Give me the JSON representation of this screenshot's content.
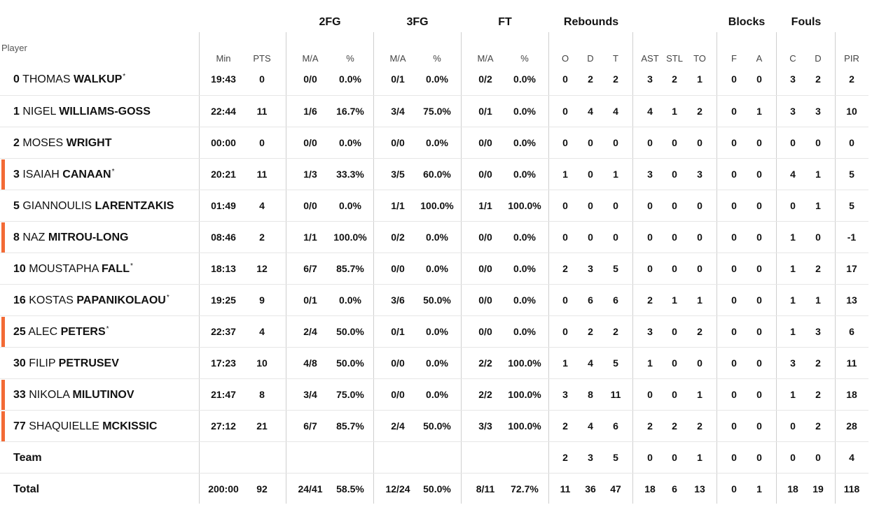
{
  "columns": {
    "group_headers": {
      "fg2": "2FG",
      "fg3": "3FG",
      "ft": "FT",
      "reb": "Rebounds",
      "blk": "Blocks",
      "fouls": "Fouls"
    },
    "player_header": "Player",
    "sub_headers": {
      "min": "Min",
      "pts": "PTS",
      "fg2_ma": "M/A",
      "fg2_pct": "%",
      "fg3_ma": "M/A",
      "fg3_pct": "%",
      "ft_ma": "M/A",
      "ft_pct": "%",
      "reb_o": "O",
      "reb_d": "D",
      "reb_t": "T",
      "ast": "AST",
      "stl": "STL",
      "to": "TO",
      "blk_f": "F",
      "blk_a": "A",
      "fl_c": "C",
      "fl_d": "D",
      "pir": "PIR"
    }
  },
  "players": [
    {
      "num": "0",
      "first": "THOMAS",
      "last": "WALKUP",
      "starter": true,
      "accent": false,
      "min": "19:43",
      "pts": "0",
      "fg2_ma": "0/0",
      "fg2_pct": "0.0%",
      "fg3_ma": "0/1",
      "fg3_pct": "0.0%",
      "ft_ma": "0/2",
      "ft_pct": "0.0%",
      "reb_o": "0",
      "reb_d": "2",
      "reb_t": "2",
      "ast": "3",
      "stl": "2",
      "to": "1",
      "blk_f": "0",
      "blk_a": "0",
      "fl_c": "3",
      "fl_d": "2",
      "pir": "2"
    },
    {
      "num": "1",
      "first": "NIGEL",
      "last": "WILLIAMS-GOSS",
      "starter": false,
      "accent": false,
      "min": "22:44",
      "pts": "11",
      "fg2_ma": "1/6",
      "fg2_pct": "16.7%",
      "fg3_ma": "3/4",
      "fg3_pct": "75.0%",
      "ft_ma": "0/1",
      "ft_pct": "0.0%",
      "reb_o": "0",
      "reb_d": "4",
      "reb_t": "4",
      "ast": "4",
      "stl": "1",
      "to": "2",
      "blk_f": "0",
      "blk_a": "1",
      "fl_c": "3",
      "fl_d": "3",
      "pir": "10"
    },
    {
      "num": "2",
      "first": "MOSES",
      "last": "WRIGHT",
      "starter": false,
      "accent": false,
      "min": "00:00",
      "pts": "0",
      "fg2_ma": "0/0",
      "fg2_pct": "0.0%",
      "fg3_ma": "0/0",
      "fg3_pct": "0.0%",
      "ft_ma": "0/0",
      "ft_pct": "0.0%",
      "reb_o": "0",
      "reb_d": "0",
      "reb_t": "0",
      "ast": "0",
      "stl": "0",
      "to": "0",
      "blk_f": "0",
      "blk_a": "0",
      "fl_c": "0",
      "fl_d": "0",
      "pir": "0"
    },
    {
      "num": "3",
      "first": "ISAIAH",
      "last": "CANAAN",
      "starter": true,
      "accent": true,
      "min": "20:21",
      "pts": "11",
      "fg2_ma": "1/3",
      "fg2_pct": "33.3%",
      "fg3_ma": "3/5",
      "fg3_pct": "60.0%",
      "ft_ma": "0/0",
      "ft_pct": "0.0%",
      "reb_o": "1",
      "reb_d": "0",
      "reb_t": "1",
      "ast": "3",
      "stl": "0",
      "to": "3",
      "blk_f": "0",
      "blk_a": "0",
      "fl_c": "4",
      "fl_d": "1",
      "pir": "5"
    },
    {
      "num": "5",
      "first": "GIANNOULIS",
      "last": "LARENTZAKIS",
      "starter": false,
      "accent": false,
      "min": "01:49",
      "pts": "4",
      "fg2_ma": "0/0",
      "fg2_pct": "0.0%",
      "fg3_ma": "1/1",
      "fg3_pct": "100.0%",
      "ft_ma": "1/1",
      "ft_pct": "100.0%",
      "reb_o": "0",
      "reb_d": "0",
      "reb_t": "0",
      "ast": "0",
      "stl": "0",
      "to": "0",
      "blk_f": "0",
      "blk_a": "0",
      "fl_c": "0",
      "fl_d": "1",
      "pir": "5"
    },
    {
      "num": "8",
      "first": "NAZ",
      "last": "MITROU-LONG",
      "starter": false,
      "accent": true,
      "min": "08:46",
      "pts": "2",
      "fg2_ma": "1/1",
      "fg2_pct": "100.0%",
      "fg3_ma": "0/2",
      "fg3_pct": "0.0%",
      "ft_ma": "0/0",
      "ft_pct": "0.0%",
      "reb_o": "0",
      "reb_d": "0",
      "reb_t": "0",
      "ast": "0",
      "stl": "0",
      "to": "0",
      "blk_f": "0",
      "blk_a": "0",
      "fl_c": "1",
      "fl_d": "0",
      "pir": "-1"
    },
    {
      "num": "10",
      "first": "MOUSTAPHA",
      "last": "FALL",
      "starter": true,
      "accent": false,
      "min": "18:13",
      "pts": "12",
      "fg2_ma": "6/7",
      "fg2_pct": "85.7%",
      "fg3_ma": "0/0",
      "fg3_pct": "0.0%",
      "ft_ma": "0/0",
      "ft_pct": "0.0%",
      "reb_o": "2",
      "reb_d": "3",
      "reb_t": "5",
      "ast": "0",
      "stl": "0",
      "to": "0",
      "blk_f": "0",
      "blk_a": "0",
      "fl_c": "1",
      "fl_d": "2",
      "pir": "17"
    },
    {
      "num": "16",
      "first": "KOSTAS",
      "last": "PAPANIKOLAOU",
      "starter": true,
      "accent": false,
      "min": "19:25",
      "pts": "9",
      "fg2_ma": "0/1",
      "fg2_pct": "0.0%",
      "fg3_ma": "3/6",
      "fg3_pct": "50.0%",
      "ft_ma": "0/0",
      "ft_pct": "0.0%",
      "reb_o": "0",
      "reb_d": "6",
      "reb_t": "6",
      "ast": "2",
      "stl": "1",
      "to": "1",
      "blk_f": "0",
      "blk_a": "0",
      "fl_c": "1",
      "fl_d": "1",
      "pir": "13"
    },
    {
      "num": "25",
      "first": "ALEC",
      "last": "PETERS",
      "starter": true,
      "accent": true,
      "min": "22:37",
      "pts": "4",
      "fg2_ma": "2/4",
      "fg2_pct": "50.0%",
      "fg3_ma": "0/1",
      "fg3_pct": "0.0%",
      "ft_ma": "0/0",
      "ft_pct": "0.0%",
      "reb_o": "0",
      "reb_d": "2",
      "reb_t": "2",
      "ast": "3",
      "stl": "0",
      "to": "2",
      "blk_f": "0",
      "blk_a": "0",
      "fl_c": "1",
      "fl_d": "3",
      "pir": "6"
    },
    {
      "num": "30",
      "first": "FILIP",
      "last": "PETRUSEV",
      "starter": false,
      "accent": false,
      "min": "17:23",
      "pts": "10",
      "fg2_ma": "4/8",
      "fg2_pct": "50.0%",
      "fg3_ma": "0/0",
      "fg3_pct": "0.0%",
      "ft_ma": "2/2",
      "ft_pct": "100.0%",
      "reb_o": "1",
      "reb_d": "4",
      "reb_t": "5",
      "ast": "1",
      "stl": "0",
      "to": "0",
      "blk_f": "0",
      "blk_a": "0",
      "fl_c": "3",
      "fl_d": "2",
      "pir": "11"
    },
    {
      "num": "33",
      "first": "NIKOLA",
      "last": "MILUTINOV",
      "starter": false,
      "accent": true,
      "min": "21:47",
      "pts": "8",
      "fg2_ma": "3/4",
      "fg2_pct": "75.0%",
      "fg3_ma": "0/0",
      "fg3_pct": "0.0%",
      "ft_ma": "2/2",
      "ft_pct": "100.0%",
      "reb_o": "3",
      "reb_d": "8",
      "reb_t": "11",
      "ast": "0",
      "stl": "0",
      "to": "1",
      "blk_f": "0",
      "blk_a": "0",
      "fl_c": "1",
      "fl_d": "2",
      "pir": "18"
    },
    {
      "num": "77",
      "first": "SHAQUIELLE",
      "last": "MCKISSIC",
      "starter": false,
      "accent": true,
      "min": "27:12",
      "pts": "21",
      "fg2_ma": "6/7",
      "fg2_pct": "85.7%",
      "fg3_ma": "2/4",
      "fg3_pct": "50.0%",
      "ft_ma": "3/3",
      "ft_pct": "100.0%",
      "reb_o": "2",
      "reb_d": "4",
      "reb_t": "6",
      "ast": "2",
      "stl": "2",
      "to": "2",
      "blk_f": "0",
      "blk_a": "0",
      "fl_c": "0",
      "fl_d": "2",
      "pir": "28"
    }
  ],
  "team_row": {
    "label": "Team",
    "min": "",
    "pts": "",
    "fg2_ma": "",
    "fg2_pct": "",
    "fg3_ma": "",
    "fg3_pct": "",
    "ft_ma": "",
    "ft_pct": "",
    "reb_o": "2",
    "reb_d": "3",
    "reb_t": "5",
    "ast": "0",
    "stl": "0",
    "to": "1",
    "blk_f": "0",
    "blk_a": "0",
    "fl_c": "0",
    "fl_d": "0",
    "pir": "4"
  },
  "total_row": {
    "label": "Total",
    "min": "200:00",
    "pts": "92",
    "fg2_ma": "24/41",
    "fg2_pct": "58.5%",
    "fg3_ma": "12/24",
    "fg3_pct": "50.0%",
    "ft_ma": "8/11",
    "ft_pct": "72.7%",
    "reb_o": "11",
    "reb_d": "36",
    "reb_t": "47",
    "ast": "18",
    "stl": "6",
    "to": "13",
    "blk_f": "0",
    "blk_a": "1",
    "fl_c": "18",
    "fl_d": "19",
    "pir": "118"
  },
  "colors": {
    "accent": "#f36a35",
    "grid": "#cfcfcf",
    "row_border": "#e6e6e6",
    "text": "#111111"
  }
}
